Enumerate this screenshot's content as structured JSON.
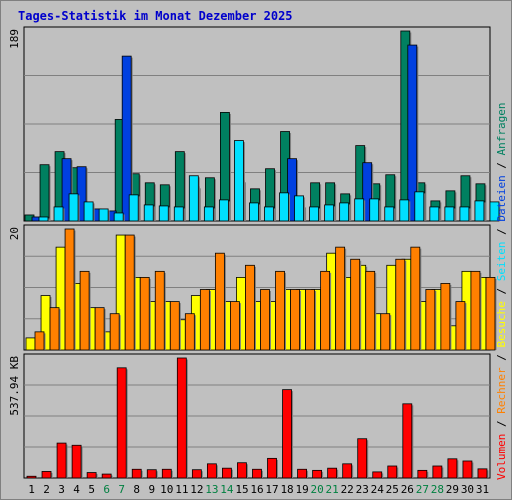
{
  "chart_data": {
    "type": "bar",
    "title": "Tages-Statistik im Monat Dezember 2025",
    "colors": {
      "anfragen": "#008060",
      "dateien": "#0040E0",
      "seiten": "#00E0FF",
      "besuche": "#FFFF00",
      "rechner": "#FF8000",
      "volumen": "#FF0000",
      "weekend": "#008040",
      "normal_day": "#000000"
    },
    "x": [
      "1",
      "2",
      "3",
      "4",
      "5",
      "6",
      "7",
      "8",
      "9",
      "10",
      "11",
      "12",
      "13",
      "14",
      "15",
      "16",
      "17",
      "18",
      "19",
      "20",
      "21",
      "22",
      "23",
      "24",
      "25",
      "26",
      "27",
      "28",
      "29",
      "30",
      "31"
    ],
    "weekend_days": [
      "6",
      "7",
      "13",
      "14",
      "20",
      "21",
      "27",
      "28"
    ],
    "legend_right": [
      {
        "text": "Volumen",
        "key": "volumen"
      },
      {
        "text": " / ",
        "key": "sep"
      },
      {
        "text": "Rechner",
        "key": "rechner"
      },
      {
        "text": " / ",
        "key": "sep"
      },
      {
        "text": "Besuche",
        "key": "besuche"
      },
      {
        "text": " / ",
        "key": "sep"
      },
      {
        "text": "Seiten",
        "key": "seiten"
      },
      {
        "text": " / ",
        "key": "sep"
      },
      {
        "text": "Dateien",
        "key": "dateien"
      },
      {
        "text": " / ",
        "key": "sep"
      },
      {
        "text": "Anfragen",
        "key": "anfragen"
      }
    ],
    "panels": [
      {
        "name": "hits",
        "axis_label": "189",
        "ylim": [
          0,
          189
        ],
        "series": [
          {
            "name": "Anfragen",
            "color_key": "anfragen",
            "values": [
              6,
              56,
              69,
              53,
              12,
              10,
              101,
              47,
              38,
              36,
              69,
              34,
              43,
              108,
              40,
              32,
              52,
              89,
              15,
              38,
              38,
              27,
              75,
              37,
              46,
              189,
              38,
              20,
              30,
              45,
              37
            ]
          },
          {
            "name": "Dateien",
            "color_key": "dateien",
            "values": [
              4,
              0,
              62,
              54,
              12,
              10,
              164,
              0,
              0,
              0,
              0,
              0,
              0,
              0,
              0,
              0,
              0,
              62,
              0,
              0,
              0,
              0,
              58,
              0,
              0,
              175,
              0,
              0,
              0,
              0,
              0
            ]
          },
          {
            "name": "Seiten",
            "color_key": "seiten",
            "values": [
              4,
              14,
              27,
              19,
              12,
              8,
              26,
              16,
              15,
              14,
              45,
              14,
              21,
              80,
              18,
              14,
              28,
              25,
              14,
              16,
              18,
              22,
              22,
              14,
              21,
              29,
              14,
              14,
              14,
              20,
              19
            ]
          }
        ]
      },
      {
        "name": "visits",
        "axis_label": "20",
        "ylim": [
          0,
          20
        ],
        "series": [
          {
            "name": "Besuche",
            "color_key": "besuche",
            "values": [
              2,
              9,
              17,
              11,
              7,
              3,
              19,
              12,
              8,
              8,
              5,
              9,
              10,
              8,
              12,
              8,
              8,
              10,
              10,
              10,
              16,
              12,
              14,
              6,
              14,
              15,
              8,
              10,
              4,
              13,
              12
            ]
          },
          {
            "name": "Rechner",
            "color_key": "rechner",
            "values": [
              3,
              7,
              20,
              13,
              7,
              6,
              19,
              12,
              13,
              8,
              6,
              10,
              16,
              8,
              14,
              10,
              13,
              10,
              10,
              13,
              17,
              15,
              13,
              6,
              15,
              17,
              10,
              11,
              8,
              13,
              12
            ]
          }
        ]
      },
      {
        "name": "volume",
        "axis_label": "537.94 KB",
        "ylim": [
          0,
          550
        ],
        "series": [
          {
            "name": "Volumen",
            "color_key": "volumen",
            "values": [
              8,
              30,
              160,
              150,
              25,
              18,
              505,
              40,
              38,
              40,
              550,
              38,
              65,
              45,
              70,
              40,
              90,
              405,
              40,
              35,
              45,
              65,
              180,
              28,
              55,
              340,
              35,
              55,
              88,
              78,
              42
            ]
          }
        ]
      }
    ]
  }
}
